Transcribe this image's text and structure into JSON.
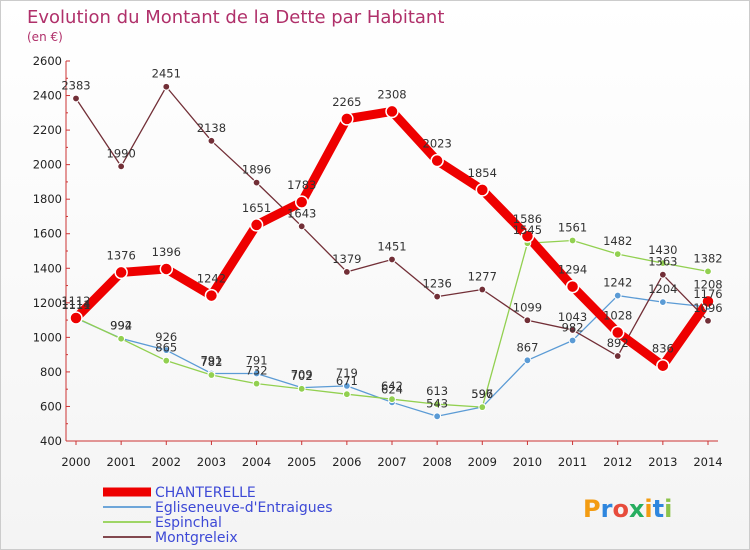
{
  "chart_data": {
    "type": "line",
    "title": "Evolution du Montant de la Dette par Habitant",
    "subtitle": "(en €)",
    "x": [
      "2000",
      "2001",
      "2002",
      "2003",
      "2004",
      "2005",
      "2006",
      "2007",
      "2008",
      "2009",
      "2010",
      "2011",
      "2012",
      "2013",
      "2014"
    ],
    "ylim": [
      400,
      2600
    ],
    "yticks": [
      400,
      600,
      800,
      1000,
      1200,
      1400,
      1600,
      1800,
      2000,
      2200,
      2400,
      2600
    ],
    "grid": false,
    "series": [
      {
        "name": "CHANTERELLE",
        "color": "#ee0000",
        "emphasis": true,
        "values": [
          1112,
          1376,
          1396,
          1242,
          1651,
          1783,
          2265,
          2308,
          2023,
          1854,
          1586,
          1294,
          1028,
          836,
          1208
        ]
      },
      {
        "name": "Egliseneuve-d'Entraigues",
        "color": "#5b9bd5",
        "values": [
          1111,
          994,
          926,
          791,
          791,
          709,
          719,
          624,
          543,
          597,
          867,
          982,
          1242,
          1204,
          1176
        ]
      },
      {
        "name": "Espinchal",
        "color": "#92d050",
        "values": [
          1114,
          992,
          865,
          782,
          732,
          702,
          671,
          642,
          613,
          596,
          1545,
          1561,
          1482,
          1430,
          1382
        ]
      },
      {
        "name": "Montgreleix",
        "color": "#722f37",
        "values": [
          2383,
          1990,
          2451,
          2138,
          1896,
          1643,
          1379,
          1451,
          1236,
          1277,
          1099,
          1043,
          892,
          1363,
          1096
        ]
      }
    ]
  },
  "logo": {
    "text": "Proxiti",
    "letter_colors": [
      "#f39c12",
      "#2e86de",
      "#e74c3c",
      "#27ae60",
      "#f39c12",
      "#2e86de",
      "#8bc34a"
    ]
  }
}
